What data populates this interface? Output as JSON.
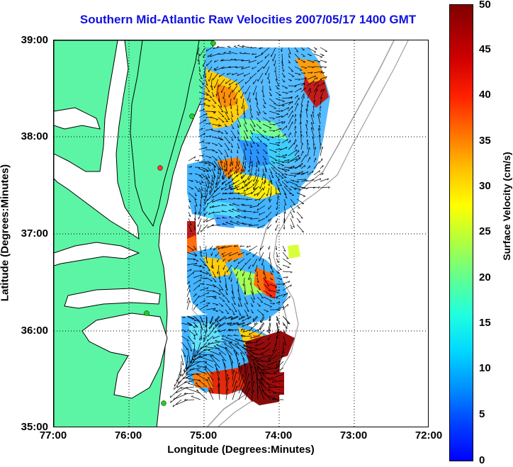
{
  "title": "Southern Mid-Atlantic Raw Velocities 2007/05/17 1400 GMT",
  "axes": {
    "xlabel": "Longitude (Degrees:Minutes)",
    "ylabel": "Latitude (Degrees:Minutes)",
    "x_ticks": [
      "77:00",
      "76:00",
      "75:00",
      "74:00",
      "73:00",
      "72:00"
    ],
    "y_ticks": [
      "39:00",
      "38:00",
      "37:00",
      "36:00",
      "35:00"
    ],
    "grid": "dotted"
  },
  "colorbar": {
    "label": "Surface Velocity (cm/s)",
    "ticks": [
      "50",
      "45",
      "40",
      "35",
      "30",
      "25",
      "20",
      "15",
      "10",
      "5",
      "0"
    ],
    "range": [
      0,
      50
    ]
  },
  "colors": {
    "land": "#5cf5a5",
    "coastline": "#000000",
    "title": "#1010e0",
    "bathymetry": "#a0a0a0",
    "station": "#22cc22"
  }
}
